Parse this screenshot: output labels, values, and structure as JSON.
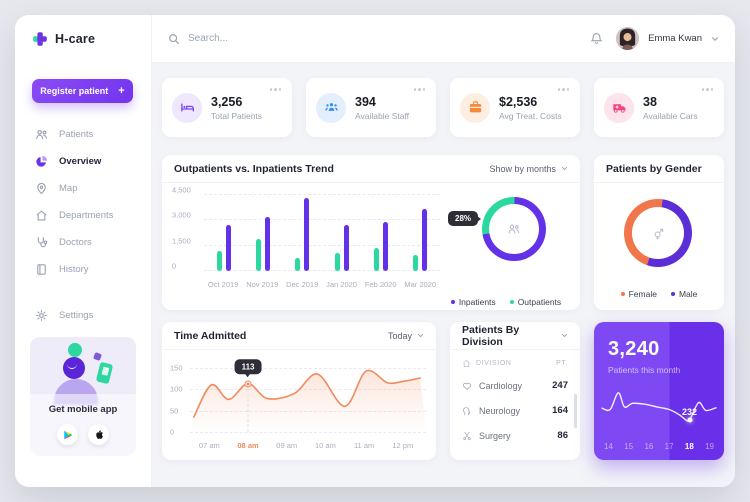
{
  "app": {
    "name": "H-care"
  },
  "topbar": {
    "search_placeholder": "Search...",
    "user_name": "Emma Kwan"
  },
  "sidebar": {
    "register_label": "Register patient",
    "register_plus": "+",
    "items": [
      {
        "label": "Patients",
        "icon": "patients-icon",
        "active": false
      },
      {
        "label": "Overview",
        "icon": "pie-chart-icon",
        "active": true
      },
      {
        "label": "Map",
        "icon": "map-pin-icon",
        "active": false
      },
      {
        "label": "Departments",
        "icon": "home-icon",
        "active": false
      },
      {
        "label": "Doctors",
        "icon": "stethoscope-icon",
        "active": false
      },
      {
        "label": "History",
        "icon": "history-book-icon",
        "active": false
      },
      {
        "label": "Settings",
        "icon": "gear-icon",
        "active": false
      }
    ],
    "mobile_app_label": "Get mobile app"
  },
  "stats": [
    {
      "value": "3,256",
      "label": "Total Patients",
      "icon": "bed-icon",
      "accent": "#7b42f6",
      "bg": "#efe7fd"
    },
    {
      "value": "394",
      "label": "Available Staff",
      "icon": "staff-icon",
      "accent": "#3d8af7",
      "bg": "#e3effd"
    },
    {
      "value": "$2,536",
      "label": "Avg Treat. Costs",
      "icon": "wallet-icon",
      "accent": "#f58a3c",
      "bg": "#fdeee1"
    },
    {
      "value": "38",
      "label": "Available Cars",
      "icon": "ambulance-icon",
      "accent": "#f2477e",
      "bg": "#fde3ec"
    }
  ],
  "trend_card": {
    "title": "Outpatients vs. Inpatients Trend",
    "filter_label": "Show by months"
  },
  "gender_card": {
    "title": "Patients by Gender"
  },
  "time_card": {
    "title": "Time Admitted",
    "filter_label": "Today"
  },
  "division_card": {
    "title": "Patients By Division",
    "columns": {
      "division": "DIVISION",
      "patients": "PT."
    },
    "rows": [
      {
        "icon": "cardiology-heart-icon",
        "name": "Cardiology",
        "count": "247"
      },
      {
        "icon": "neurology-icon",
        "name": "Neurology",
        "count": "164"
      },
      {
        "icon": "surgery-scissors-icon",
        "name": "Surgery",
        "count": "86"
      }
    ]
  },
  "month_card": {
    "value": "3,240",
    "label": "Patients this month",
    "active_day": "18",
    "days": [
      "14",
      "15",
      "16",
      "17",
      "18",
      "19"
    ]
  },
  "chart_data": [
    {
      "id": "trend-bars",
      "type": "bar",
      "title": "Outpatients vs. Inpatients Trend",
      "categories": [
        "Oct 2019",
        "Nov 2019",
        "Dec 2019",
        "Jan 2020",
        "Feb 2020",
        "Mar 2020"
      ],
      "series": [
        {
          "name": "Outpatients",
          "color": "#2bd9a0",
          "values": [
            1200,
            1900,
            760,
            1080,
            1350,
            960
          ]
        },
        {
          "name": "Inpatients",
          "color": "#6331e8",
          "values": [
            2750,
            3200,
            4300,
            2700,
            2900,
            3700
          ]
        }
      ],
      "ylim": [
        0,
        4500
      ],
      "ytick_values": [
        0,
        1500,
        3000,
        4500
      ],
      "ytick_labels": [
        "0",
        "1,500",
        "3,000",
        "4,500"
      ],
      "grid": true,
      "legend_position": "below-donut",
      "legend": [
        {
          "label": "Inpatients",
          "color": "#6331e8"
        },
        {
          "label": "Outpatients",
          "color": "#2bd9a0"
        }
      ]
    },
    {
      "id": "trend-donut",
      "type": "pie",
      "start_angle": -100,
      "segments": [
        {
          "label": "Outpatients",
          "value": 28,
          "color": "#2bd9a0"
        },
        {
          "label": "Inpatients",
          "value": 72,
          "color": "#6331e8"
        }
      ],
      "annotation": "28%",
      "center_icon": "patients-icon"
    },
    {
      "id": "gender-donut",
      "type": "pie",
      "title": "Patients by Gender",
      "start_angle": 8,
      "segments": [
        {
          "label": "Male",
          "value": 53,
          "color": "#5b2ed8"
        },
        {
          "label": "Female",
          "value": 47,
          "color": "#f2764b"
        }
      ],
      "legend": [
        {
          "label": "Female",
          "color": "#f2764b"
        },
        {
          "label": "Male",
          "color": "#5b2ed8"
        }
      ],
      "center_icon": "gender-icon"
    },
    {
      "id": "time-line",
      "type": "line",
      "title": "Time Admitted",
      "color": "#f08a5c",
      "x": [
        6.6,
        7.05,
        7.5,
        8.0,
        8.5,
        9.2,
        9.8,
        10.5,
        11.05,
        11.6,
        12.0,
        12.45
      ],
      "y": [
        35,
        110,
        76,
        113,
        78,
        90,
        135,
        60,
        142,
        115,
        118,
        126
      ],
      "xlim": [
        6.5,
        12.6
      ],
      "ylim": [
        0,
        168
      ],
      "ytick_values": [
        0,
        50,
        100,
        150
      ],
      "ytick_labels": [
        "0",
        "50",
        "100",
        "150"
      ],
      "xtick_hours": [
        7,
        8,
        9,
        10,
        11,
        12
      ],
      "xtick_labels": [
        "07 am",
        "08 am",
        "09 am",
        "10 am",
        "11 am",
        "12 pm"
      ],
      "highlight_xtick": "08 am",
      "marker": {
        "x": 8.0,
        "y": 113,
        "label": "113"
      },
      "grid": true
    },
    {
      "id": "month-spark",
      "type": "line",
      "title": "Patients this month",
      "color": "#ffffff",
      "x": [
        13.7,
        14.1,
        14.5,
        14.8,
        15.2,
        15.8,
        16.4,
        17.0,
        17.5,
        17.9,
        18.05,
        18.45,
        18.8,
        19.3
      ],
      "y": [
        45,
        42,
        80,
        48,
        56,
        54,
        48,
        42,
        30,
        16,
        22,
        58,
        40,
        46
      ],
      "xlim": [
        13.6,
        19.4
      ],
      "ylim": [
        0,
        100
      ],
      "marker": {
        "x": 18.0,
        "y": 18,
        "label": "232"
      },
      "days": [
        14,
        15,
        16,
        17,
        18,
        19
      ]
    }
  ]
}
